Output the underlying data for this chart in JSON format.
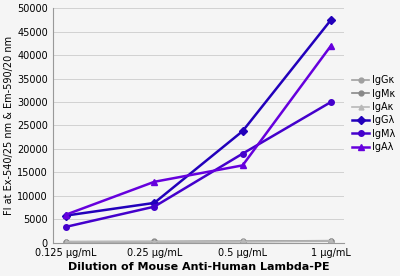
{
  "x_labels": [
    "0.125 μg/mL",
    "0.25 μg/mL",
    "0.5 μg/mL",
    "1 μg/mL"
  ],
  "x_values": [
    0,
    1,
    2,
    3
  ],
  "series": [
    {
      "name": "IgGκ",
      "values": [
        200,
        200,
        250,
        350
      ],
      "color": "#a0a0a0",
      "marker": "o",
      "lw": 1.2,
      "ms": 3.5
    },
    {
      "name": "IgMκ",
      "values": [
        250,
        280,
        350,
        450
      ],
      "color": "#888888",
      "marker": "o",
      "lw": 1.2,
      "ms": 3.5
    },
    {
      "name": "IgAκ",
      "values": [
        200,
        230,
        300,
        400
      ],
      "color": "#b8b8b8",
      "marker": "^",
      "lw": 1.2,
      "ms": 3.5
    },
    {
      "name": "IgGλ",
      "values": [
        5800,
        8500,
        23800,
        47500
      ],
      "color": "#2200bb",
      "marker": "D",
      "lw": 1.8,
      "ms": 4
    },
    {
      "name": "IgMλ",
      "values": [
        3400,
        7700,
        19000,
        30000
      ],
      "color": "#4400cc",
      "marker": "o",
      "lw": 1.8,
      "ms": 4
    },
    {
      "name": "IgAλ",
      "values": [
        6000,
        13000,
        16500,
        42000
      ],
      "color": "#6600dd",
      "marker": "^",
      "lw": 1.8,
      "ms": 4
    }
  ],
  "ylabel": "FI at Ex-540/25 nm & Em-590/20 nm",
  "xlabel": "Dilution of Mouse Anti-Human Lambda-PE",
  "ylim": [
    0,
    50000
  ],
  "yticks": [
    0,
    5000,
    10000,
    15000,
    20000,
    25000,
    30000,
    35000,
    40000,
    45000,
    50000
  ],
  "ylabel_fontsize": 7,
  "xlabel_fontsize": 8,
  "tick_fontsize": 7,
  "legend_fontsize": 7,
  "background_color": "#f5f5f5"
}
